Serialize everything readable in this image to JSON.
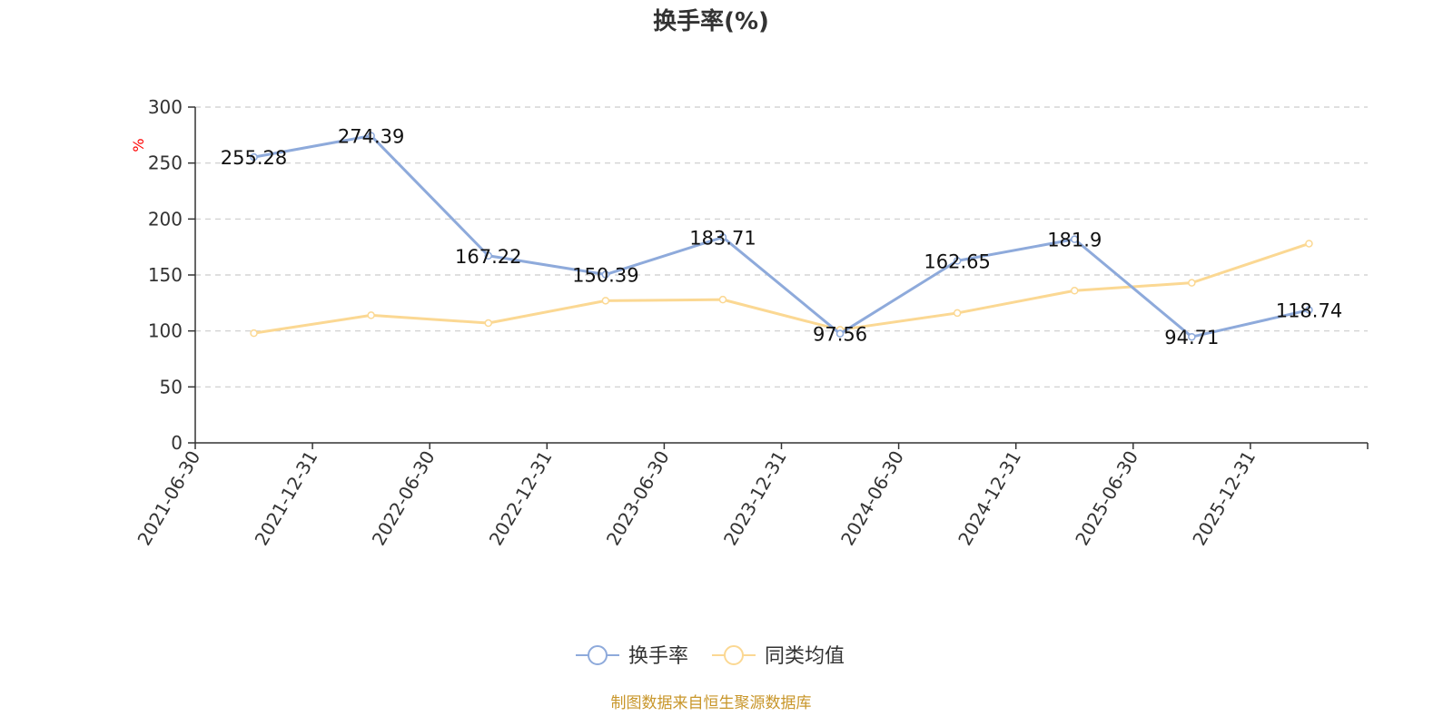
{
  "title": "换手率(%)",
  "source_note": "制图数据来自恒生聚源数据库",
  "colors": {
    "series_turnover": "#8eaadb",
    "series_average": "#fbd893",
    "grid": "#cccccc",
    "axis": "#333333",
    "unit": "#ff0000",
    "source": "#c8962a"
  },
  "legend": [
    {
      "label": "换手率",
      "icon": "circle-line-icon"
    },
    {
      "label": "同类均值",
      "icon": "circle-line-icon"
    }
  ],
  "chart_data": {
    "type": "line",
    "title": "换手率(%)",
    "ylabel": "%",
    "xlabel": "",
    "ylim": [
      0,
      300
    ],
    "y_ticks": [
      0,
      50,
      100,
      150,
      200,
      250,
      300
    ],
    "grid": true,
    "legend_position": "bottom-center",
    "categories": [
      "2021-06-30",
      "2021-12-31",
      "2022-06-30",
      "2022-12-31",
      "2023-06-30",
      "2023-12-31",
      "2024-06-30",
      "2024-12-31",
      "2025-06-30",
      "2025-12-31"
    ],
    "series": [
      {
        "name": "换手率",
        "values": [
          255.28,
          274.39,
          167.22,
          150.39,
          183.71,
          97.56,
          162.65,
          181.9,
          94.71,
          118.74
        ],
        "data_labels": [
          "255.28",
          "274.39",
          "167.22",
          "150.39",
          "183.71",
          "97.56",
          "162.65",
          "181.9",
          "94.71",
          "118.74"
        ]
      },
      {
        "name": "同类均值",
        "values": [
          98,
          114,
          107,
          127,
          128,
          101,
          116,
          136,
          143,
          178
        ]
      }
    ]
  }
}
